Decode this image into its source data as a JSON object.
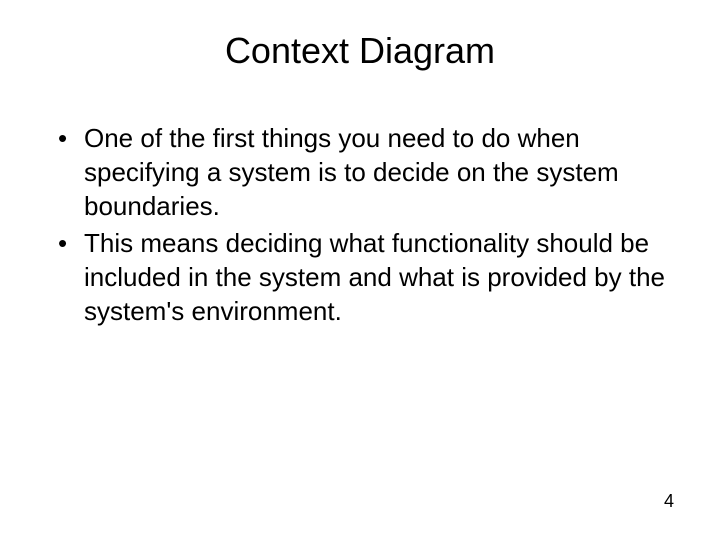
{
  "slide": {
    "title": "Context Diagram",
    "bullets": [
      "One of the first things you need to do when specifying a system is to decide on the system boundaries.",
      "This means deciding what functionality should be included in the system and what is provided by the system's environment."
    ],
    "page_number": "4"
  },
  "styling": {
    "background_color": "#ffffff",
    "text_color": "#000000",
    "title_fontsize": 36,
    "body_fontsize": 26,
    "page_number_fontsize": 18,
    "font_family": "Arial"
  }
}
